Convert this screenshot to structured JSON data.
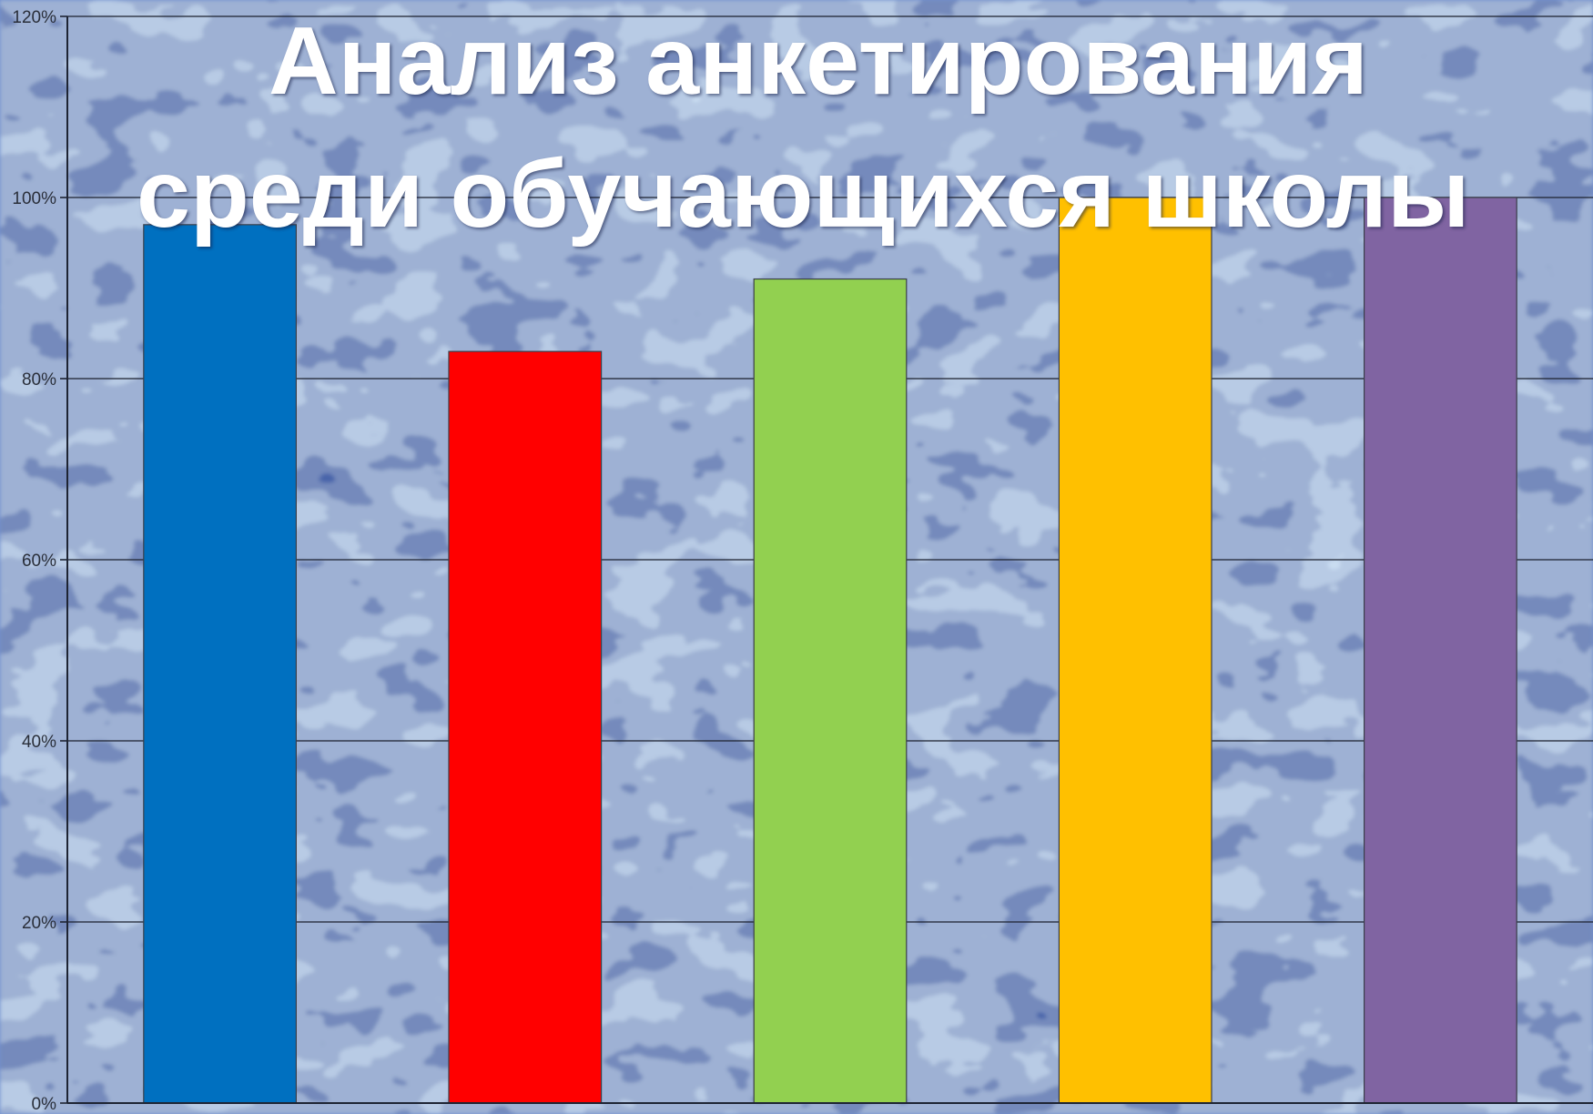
{
  "chart_data": {
    "type": "bar",
    "title_lines": [
      "Анализ анкетирования",
      "среди обучающихся школы"
    ],
    "categories": [
      "",
      "",
      "",
      "",
      ""
    ],
    "values": [
      0.97,
      0.83,
      0.91,
      1.0,
      1.0
    ],
    "colors": [
      "#0070c0",
      "#ff0000",
      "#92d050",
      "#ffc000",
      "#8064a2"
    ],
    "ylim": [
      0,
      1.2
    ],
    "yticks": [
      {
        "value": 0,
        "label": "0%"
      },
      {
        "value": 0.2,
        "label": "20%"
      },
      {
        "value": 0.4,
        "label": "40%"
      },
      {
        "value": 0.6,
        "label": "60%"
      },
      {
        "value": 0.8,
        "label": "80%"
      },
      {
        "value": 1.0,
        "label": "100%"
      },
      {
        "value": 1.2,
        "label": "120%"
      }
    ],
    "grid": true,
    "legend": "none",
    "background_colors": [
      "#9cb8e8",
      "#3f63a7",
      "#14306e",
      "#c6d8f7"
    ]
  }
}
